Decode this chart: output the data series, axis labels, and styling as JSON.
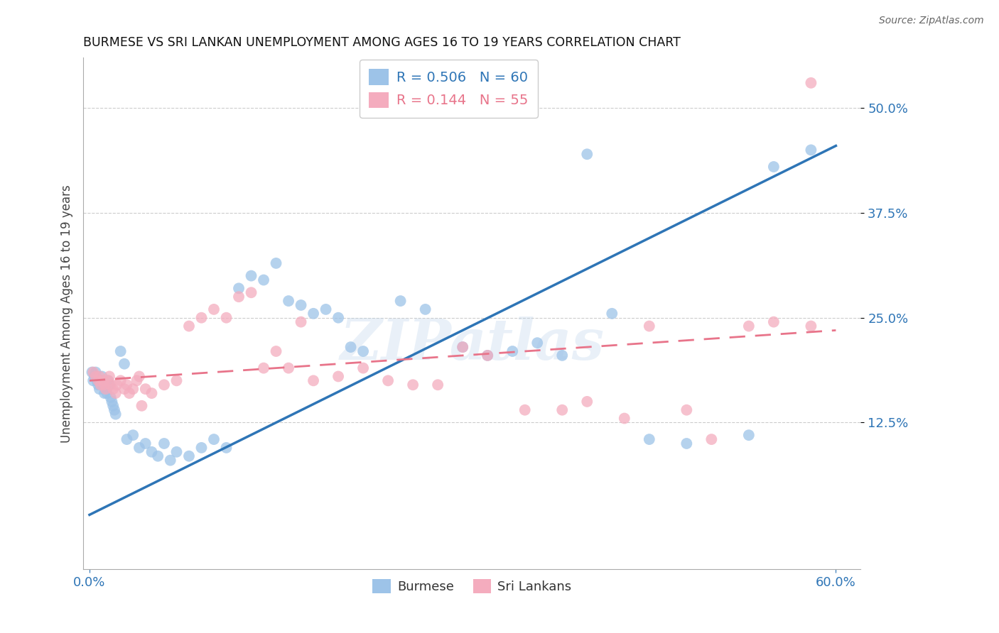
{
  "title": "BURMESE VS SRI LANKAN UNEMPLOYMENT AMONG AGES 16 TO 19 YEARS CORRELATION CHART",
  "source": "Source: ZipAtlas.com",
  "ylabel": "Unemployment Among Ages 16 to 19 years",
  "ytick_labels": [
    "50.0%",
    "37.5%",
    "25.0%",
    "12.5%"
  ],
  "ytick_values": [
    0.5,
    0.375,
    0.25,
    0.125
  ],
  "xtick_labels": [
    "0.0%",
    "60.0%"
  ],
  "xtick_values": [
    0.0,
    0.6
  ],
  "xlim": [
    -0.005,
    0.62
  ],
  "ylim": [
    -0.05,
    0.56
  ],
  "burmese_color": "#9DC3E8",
  "srilanka_color": "#F4ACBE",
  "burmese_line_color": "#2E75B6",
  "srilanka_line_color": "#E8748A",
  "R_burmese": 0.506,
  "N_burmese": 60,
  "R_srilanka": 0.144,
  "N_srilanka": 55,
  "burmese_x": [
    0.002,
    0.003,
    0.004,
    0.005,
    0.006,
    0.007,
    0.008,
    0.009,
    0.01,
    0.011,
    0.012,
    0.013,
    0.014,
    0.015,
    0.016,
    0.017,
    0.018,
    0.019,
    0.02,
    0.021,
    0.025,
    0.028,
    0.03,
    0.035,
    0.04,
    0.045,
    0.05,
    0.055,
    0.06,
    0.065,
    0.07,
    0.08,
    0.09,
    0.1,
    0.11,
    0.12,
    0.13,
    0.14,
    0.15,
    0.16,
    0.17,
    0.18,
    0.19,
    0.2,
    0.21,
    0.22,
    0.25,
    0.27,
    0.3,
    0.32,
    0.34,
    0.36,
    0.38,
    0.4,
    0.42,
    0.45,
    0.48,
    0.53,
    0.55,
    0.58
  ],
  "burmese_y": [
    0.185,
    0.175,
    0.18,
    0.185,
    0.175,
    0.17,
    0.165,
    0.175,
    0.18,
    0.17,
    0.16,
    0.165,
    0.16,
    0.175,
    0.17,
    0.155,
    0.15,
    0.145,
    0.14,
    0.135,
    0.21,
    0.195,
    0.105,
    0.11,
    0.095,
    0.1,
    0.09,
    0.085,
    0.1,
    0.08,
    0.09,
    0.085,
    0.095,
    0.105,
    0.095,
    0.285,
    0.3,
    0.295,
    0.315,
    0.27,
    0.265,
    0.255,
    0.26,
    0.25,
    0.215,
    0.21,
    0.27,
    0.26,
    0.215,
    0.205,
    0.21,
    0.22,
    0.205,
    0.445,
    0.255,
    0.105,
    0.1,
    0.11,
    0.43,
    0.45
  ],
  "srilanka_x": [
    0.003,
    0.005,
    0.007,
    0.009,
    0.011,
    0.013,
    0.015,
    0.017,
    0.019,
    0.021,
    0.025,
    0.03,
    0.035,
    0.04,
    0.045,
    0.05,
    0.06,
    0.07,
    0.08,
    0.09,
    0.1,
    0.11,
    0.12,
    0.13,
    0.14,
    0.15,
    0.16,
    0.17,
    0.18,
    0.2,
    0.22,
    0.24,
    0.26,
    0.28,
    0.3,
    0.32,
    0.35,
    0.38,
    0.4,
    0.43,
    0.45,
    0.48,
    0.5,
    0.53,
    0.55,
    0.58,
    0.008,
    0.012,
    0.016,
    0.022,
    0.028,
    0.032,
    0.038,
    0.042,
    0.58
  ],
  "srilanka_y": [
    0.185,
    0.18,
    0.175,
    0.17,
    0.175,
    0.165,
    0.175,
    0.17,
    0.165,
    0.16,
    0.175,
    0.17,
    0.165,
    0.18,
    0.165,
    0.16,
    0.17,
    0.175,
    0.24,
    0.25,
    0.26,
    0.25,
    0.275,
    0.28,
    0.19,
    0.21,
    0.19,
    0.245,
    0.175,
    0.18,
    0.19,
    0.175,
    0.17,
    0.17,
    0.215,
    0.205,
    0.14,
    0.14,
    0.15,
    0.13,
    0.24,
    0.14,
    0.105,
    0.24,
    0.245,
    0.53,
    0.18,
    0.17,
    0.18,
    0.17,
    0.165,
    0.16,
    0.175,
    0.145,
    0.24
  ],
  "watermark_text": "ZIPatlas",
  "background_color": "#FFFFFF",
  "grid_color": "#CCCCCC",
  "grid_linestyle": "--",
  "marker_size": 130,
  "marker_alpha": 0.75
}
